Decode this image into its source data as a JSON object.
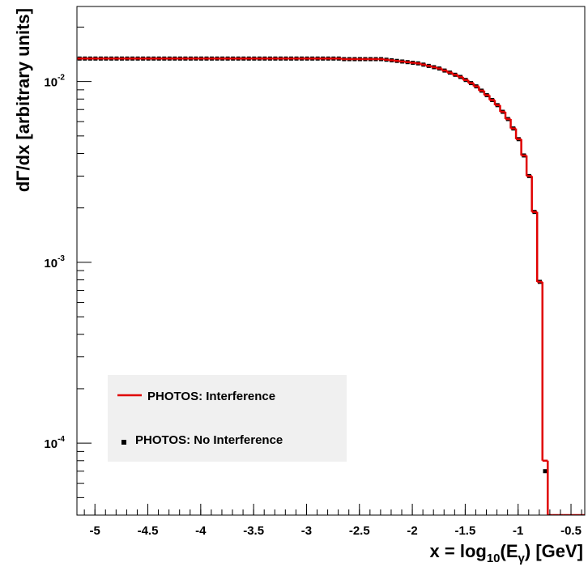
{
  "chart_data": {
    "type": "histogram",
    "xlabel": [
      "x = log",
      "10",
      "(E",
      "γ",
      ") [GeV]"
    ],
    "ylabel": "dΓ/dx [arbitrary units]",
    "bins": [
      -5.17,
      -5.12,
      -5.07,
      -5.02,
      -4.97,
      -4.92,
      -4.87,
      -4.82,
      -4.77,
      -4.72,
      -4.67,
      -4.62,
      -4.57,
      -4.52,
      -4.47,
      -4.42,
      -4.37,
      -4.32,
      -4.27,
      -4.22,
      -4.17,
      -4.12,
      -4.07,
      -4.02,
      -3.97,
      -3.92,
      -3.87,
      -3.82,
      -3.77,
      -3.72,
      -3.67,
      -3.62,
      -3.57,
      -3.52,
      -3.47,
      -3.42,
      -3.37,
      -3.32,
      -3.27,
      -3.22,
      -3.17,
      -3.12,
      -3.07,
      -3.02,
      -2.97,
      -2.92,
      -2.87,
      -2.82,
      -2.77,
      -2.72,
      -2.67,
      -2.62,
      -2.57,
      -2.52,
      -2.47,
      -2.42,
      -2.37,
      -2.32,
      -2.27,
      -2.22,
      -2.17,
      -2.12,
      -2.07,
      -2.02,
      -1.97,
      -1.92,
      -1.87,
      -1.82,
      -1.77,
      -1.72,
      -1.67,
      -1.62,
      -1.57,
      -1.52,
      -1.47,
      -1.42,
      -1.37,
      -1.32,
      -1.27,
      -1.22,
      -1.17,
      -1.12,
      -1.07,
      -1.02,
      -0.97,
      -0.92,
      -0.87,
      -0.82,
      -0.77,
      -0.72,
      -0.67,
      -0.62,
      -0.57,
      -0.52,
      -0.47,
      -0.42,
      -0.37
    ],
    "series": [
      {
        "name": "PHOTOS: Interference",
        "color": "#e00000",
        "style": "line",
        "values": [
          0.0134,
          0.0134,
          0.0134,
          0.0134,
          0.0134,
          0.0134,
          0.0134,
          0.0134,
          0.0134,
          0.0134,
          0.0134,
          0.0134,
          0.0134,
          0.0134,
          0.0134,
          0.0134,
          0.0134,
          0.0134,
          0.0134,
          0.0134,
          0.0134,
          0.0134,
          0.0134,
          0.0134,
          0.0134,
          0.0134,
          0.0134,
          0.0134,
          0.0134,
          0.0134,
          0.0134,
          0.0134,
          0.0134,
          0.0134,
          0.0134,
          0.0134,
          0.0134,
          0.0134,
          0.0134,
          0.0134,
          0.0134,
          0.0134,
          0.0134,
          0.0134,
          0.0134,
          0.0134,
          0.0134,
          0.0134,
          0.0134,
          0.0134,
          0.0133,
          0.0133,
          0.0133,
          0.0133,
          0.0133,
          0.0133,
          0.0133,
          0.0133,
          0.0132,
          0.0131,
          0.013,
          0.0129,
          0.0128,
          0.0127,
          0.0126,
          0.0124,
          0.0122,
          0.012,
          0.0118,
          0.0115,
          0.0112,
          0.0109,
          0.0106,
          0.0102,
          0.0098,
          0.0094,
          0.0089,
          0.0084,
          0.0079,
          0.0074,
          0.0068,
          0.0062,
          0.0055,
          0.0048,
          0.0039,
          0.003,
          0.0019,
          0.00078,
          8e-05,
          0,
          0,
          0,
          0,
          0,
          0,
          0
        ]
      },
      {
        "name": "PHOTOS: No Interference",
        "color": "#000000",
        "style": "marker",
        "values": [
          0.0134,
          0.0134,
          0.0134,
          0.0134,
          0.0134,
          0.0134,
          0.0134,
          0.0134,
          0.0134,
          0.0134,
          0.0134,
          0.0134,
          0.0134,
          0.0134,
          0.0134,
          0.0134,
          0.0134,
          0.0134,
          0.0134,
          0.0134,
          0.0134,
          0.0134,
          0.0134,
          0.0134,
          0.0134,
          0.0134,
          0.0134,
          0.0134,
          0.0134,
          0.0134,
          0.0134,
          0.0134,
          0.0134,
          0.0134,
          0.0134,
          0.0134,
          0.0134,
          0.0134,
          0.0134,
          0.0134,
          0.0134,
          0.0134,
          0.0134,
          0.0134,
          0.0134,
          0.0134,
          0.0134,
          0.0134,
          0.0134,
          0.0134,
          0.0133,
          0.0133,
          0.0133,
          0.0133,
          0.0133,
          0.0133,
          0.0133,
          0.0133,
          0.0132,
          0.0131,
          0.013,
          0.0129,
          0.0128,
          0.0127,
          0.0126,
          0.0124,
          0.0122,
          0.012,
          0.0118,
          0.0115,
          0.0112,
          0.0109,
          0.0106,
          0.0102,
          0.0098,
          0.0094,
          0.0089,
          0.0084,
          0.0079,
          0.0074,
          0.0068,
          0.0062,
          0.0055,
          0.0048,
          0.0039,
          0.003,
          0.0019,
          0.00078,
          7e-05,
          null,
          null,
          null,
          null,
          null,
          null,
          null
        ]
      }
    ],
    "xlim": [
      -5.17,
      -0.37
    ],
    "xticks": [
      -5,
      -4.5,
      -4,
      -3.5,
      -3,
      -2.5,
      -2,
      -1.5,
      -1,
      -0.5
    ],
    "ylim": [
      4e-05,
      0.026
    ],
    "yscale": "log",
    "yticks": [
      {
        "value": 0.0001,
        "label": "10",
        "exponent": "-4"
      },
      {
        "value": 0.001,
        "label": "10",
        "exponent": "-3"
      },
      {
        "value": 0.01,
        "label": "10",
        "exponent": "-2"
      }
    ]
  }
}
